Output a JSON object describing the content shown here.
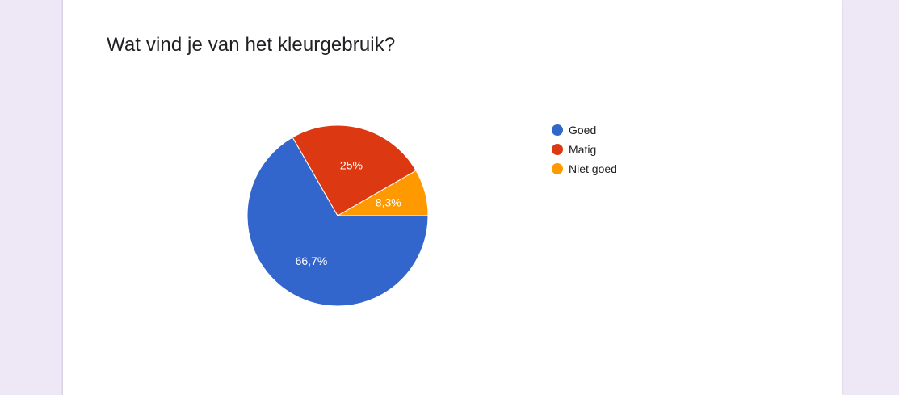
{
  "question": {
    "title": "Wat vind je van het kleurgebruik?"
  },
  "chart_data": {
    "type": "pie",
    "title": "Wat vind je van het kleurgebruik?",
    "legend_position": "right",
    "slices": [
      {
        "name": "Goed",
        "value": 66.7,
        "label": "66,7%",
        "color": "#3366cc"
      },
      {
        "name": "Matig",
        "value": 25,
        "label": "25%",
        "color": "#dc3912"
      },
      {
        "name": "Niet goed",
        "value": 8.3,
        "label": "8,3%",
        "color": "#ff9900"
      }
    ]
  }
}
